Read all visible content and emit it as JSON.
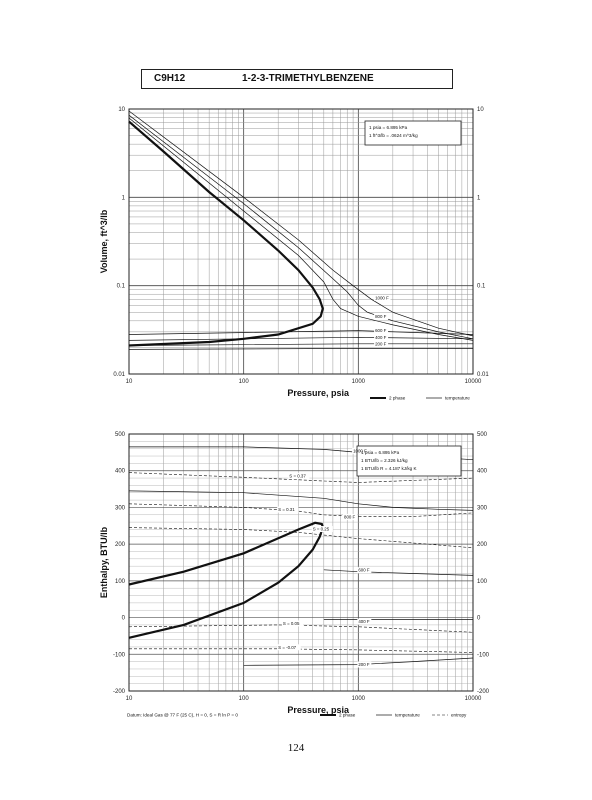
{
  "header": {
    "formula": "C9H12",
    "name": "1-2-3-TRIMETHYLBENZENE"
  },
  "page_number": "124",
  "chart_data": [
    {
      "type": "line",
      "title": "",
      "xlabel": "Pressure, psia",
      "ylabel": "Volume, ft^3/lb",
      "x_scale": "log",
      "y_scale": "log",
      "xlim": [
        10,
        10000
      ],
      "ylim": [
        0.01,
        10
      ],
      "x_ticks": [
        "10",
        "100",
        "1000",
        "10000"
      ],
      "y_ticks": [
        "10",
        "1",
        "0.1",
        "0.01"
      ],
      "grid": true,
      "notes": [
        "1 psia = 6.895 kPa",
        "1 ft^3/lb = .0624 m^3/kg"
      ],
      "legend": [
        "2 phase",
        "temperature"
      ],
      "series": [
        {
          "kind": "2 phase",
          "points": [
            [
              10,
              7.2
            ],
            [
              20,
              3.3
            ],
            [
              50,
              1.15
            ],
            [
              100,
              0.55
            ],
            [
              200,
              0.25
            ],
            [
              300,
              0.15
            ],
            [
              400,
              0.095
            ],
            [
              460,
              0.07
            ],
            [
              490,
              0.055
            ],
            [
              470,
              0.045
            ],
            [
              400,
              0.037
            ],
            [
              200,
              0.028
            ],
            [
              100,
              0.025
            ],
            [
              50,
              0.023
            ],
            [
              10,
              0.021
            ]
          ]
        },
        {
          "kind": "temperature",
          "points": [
            [
              10,
              9.5
            ],
            [
              100,
              1.0
            ],
            [
              300,
              0.33
            ],
            [
              600,
              0.15
            ],
            [
              900,
              0.1
            ],
            [
              1300,
              0.07
            ],
            [
              2000,
              0.05
            ],
            [
              5000,
              0.033
            ],
            [
              10000,
              0.027
            ]
          ]
        },
        {
          "kind": "temperature",
          "points": [
            [
              10,
              8.5
            ],
            [
              100,
              0.85
            ],
            [
              300,
              0.27
            ],
            [
              600,
              0.12
            ],
            [
              800,
              0.085
            ],
            [
              1000,
              0.06
            ],
            [
              1200,
              0.05
            ],
            [
              2000,
              0.04
            ],
            [
              5000,
              0.03
            ],
            [
              10000,
              0.025
            ]
          ]
        },
        {
          "kind": "temperature",
          "points": [
            [
              10,
              7.9
            ],
            [
              100,
              0.7
            ],
            [
              300,
              0.22
            ],
            [
              500,
              0.11
            ],
            [
              600,
              0.07
            ],
            [
              700,
              0.055
            ],
            [
              1000,
              0.045
            ],
            [
              2000,
              0.036
            ],
            [
              5000,
              0.028
            ],
            [
              10000,
              0.024
            ]
          ]
        },
        {
          "kind": "temperature",
          "points": [
            [
              10,
              0.028
            ],
            [
              1000,
              0.031
            ],
            [
              10000,
              0.028
            ]
          ]
        },
        {
          "kind": "temperature",
          "points": [
            [
              10,
              0.024
            ],
            [
              1000,
              0.026
            ],
            [
              10000,
              0.025
            ]
          ]
        },
        {
          "kind": "temperature",
          "points": [
            [
              10,
              0.021
            ],
            [
              1000,
              0.022
            ],
            [
              10000,
              0.022
            ]
          ]
        },
        {
          "kind": "temperature",
          "points": [
            [
              10,
              0.019
            ],
            [
              1000,
              0.0195
            ],
            [
              10000,
              0.0195
            ]
          ]
        }
      ],
      "labels": [
        {
          "text": "1000 F",
          "x": 1400,
          "y": 0.07
        },
        {
          "text": "800 F",
          "x": 1400,
          "y": 0.043
        },
        {
          "text": "600 F",
          "x": 1400,
          "y": 0.03
        },
        {
          "text": "400 F",
          "x": 1400,
          "y": 0.025
        },
        {
          "text": "200 F",
          "x": 1400,
          "y": 0.021
        }
      ]
    },
    {
      "type": "line",
      "title": "",
      "xlabel": "Pressure, psia",
      "ylabel": "Enthalpy, BTU/lb",
      "x_scale": "log",
      "y_scale": "linear",
      "xlim": [
        10,
        10000
      ],
      "ylim": [
        -200,
        500
      ],
      "x_ticks": [
        "10",
        "100",
        "1000",
        "10000"
      ],
      "y_ticks": [
        "500",
        "400",
        "300",
        "200",
        "100",
        "0",
        "-100",
        "-200"
      ],
      "grid": true,
      "notes": [
        "1 psia = 6.895 kPa",
        "1 BTU/lb = 2.326 kJ/kg",
        "1 BTU/lb R = 4.187 kJ/kg K"
      ],
      "legend": [
        "2 phase",
        "temperature",
        "entropy"
      ],
      "footnote": "Datum: Ideal Gas @ 77 F (25 C), H = 0, S = R ln P = 0",
      "series": [
        {
          "kind": "2 phase",
          "points": [
            [
              10,
              -55
            ],
            [
              30,
              -20
            ],
            [
              100,
              40
            ],
            [
              200,
              95
            ],
            [
              300,
              140
            ],
            [
              400,
              185
            ],
            [
              460,
              220
            ],
            [
              490,
              245
            ],
            [
              480,
              255
            ],
            [
              420,
              258
            ],
            [
              300,
              240
            ],
            [
              100,
              175
            ],
            [
              30,
              125
            ],
            [
              10,
              90
            ]
          ]
        },
        {
          "kind": "temperature",
          "points": [
            [
              10,
              465
            ],
            [
              100,
              465
            ],
            [
              500,
              458
            ],
            [
              1000,
              450
            ],
            [
              3000,
              440
            ],
            [
              10000,
              430
            ]
          ]
        },
        {
          "kind": "temperature",
          "points": [
            [
              10,
              345
            ],
            [
              100,
              340
            ],
            [
              500,
              325
            ],
            [
              1000,
              310
            ],
            [
              2000,
              300
            ],
            [
              5000,
              295
            ],
            [
              10000,
              292
            ]
          ]
        },
        {
          "kind": "temperature",
          "points": [
            [
              500,
              130
            ],
            [
              1000,
              125
            ],
            [
              3000,
              120
            ],
            [
              10000,
              115
            ]
          ]
        },
        {
          "kind": "temperature",
          "points": [
            [
              500,
              -5
            ],
            [
              1000,
              -5
            ],
            [
              3000,
              -5
            ],
            [
              10000,
              -5
            ]
          ]
        },
        {
          "kind": "temperature",
          "points": [
            [
              100,
              -130
            ],
            [
              1000,
              -128
            ],
            [
              3000,
              -120
            ],
            [
              10000,
              -110
            ]
          ]
        },
        {
          "kind": "entropy",
          "points": [
            [
              10,
              395
            ],
            [
              100,
              382
            ],
            [
              500,
              372
            ],
            [
              1000,
              368
            ],
            [
              10000,
              380
            ]
          ]
        },
        {
          "kind": "entropy",
          "points": [
            [
              10,
              310
            ],
            [
              100,
              300
            ],
            [
              300,
              290
            ],
            [
              500,
              280
            ],
            [
              1000,
              275
            ],
            [
              3000,
              275
            ],
            [
              10000,
              285
            ]
          ]
        },
        {
          "kind": "entropy",
          "points": [
            [
              10,
              245
            ],
            [
              100,
              240
            ],
            [
              300,
              232
            ],
            [
              1000,
              215
            ],
            [
              10000,
              190
            ]
          ]
        },
        {
          "kind": "entropy",
          "points": [
            [
              10,
              -25
            ],
            [
              200,
              -20
            ],
            [
              1000,
              -25
            ],
            [
              10000,
              -40
            ]
          ]
        },
        {
          "kind": "entropy",
          "points": [
            [
              10,
              -85
            ],
            [
              200,
              -85
            ],
            [
              1000,
              -88
            ],
            [
              10000,
              -95
            ]
          ]
        }
      ],
      "labels": [
        {
          "text": "1000 F",
          "x": 900,
          "y": 450
        },
        {
          "text": "S = 0.37",
          "x": 250,
          "y": 382
        },
        {
          "text": "S = 0.31",
          "x": 200,
          "y": 290
        },
        {
          "text": "800 F",
          "x": 750,
          "y": 270
        },
        {
          "text": "S = 0.25",
          "x": 400,
          "y": 237
        },
        {
          "text": "600 F",
          "x": 1000,
          "y": 125
        },
        {
          "text": "S = 0.05",
          "x": 220,
          "y": -20
        },
        {
          "text": "400 F",
          "x": 1000,
          "y": -15
        },
        {
          "text": "S = -0.07",
          "x": 200,
          "y": -85
        },
        {
          "text": "200 F",
          "x": 1000,
          "y": -132
        }
      ]
    }
  ]
}
